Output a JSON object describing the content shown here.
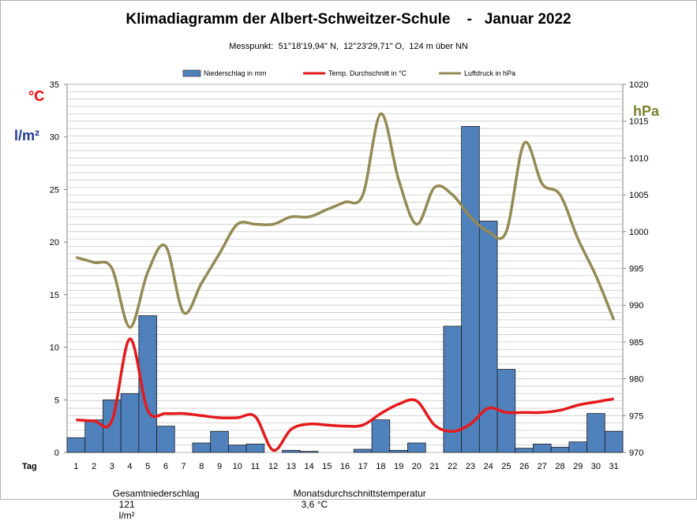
{
  "chart_data": {
    "type": "bar+line",
    "title": "Klimadiagramm der Albert-Schweitzer-Schule    -   Januar 2022",
    "subtitle": "Messpunkt:  51°18'19,94\" N,  12°23'29,71\" O,  124 m über NN",
    "x_axis_label": "Tag",
    "left_axis_units": [
      "°C",
      "l/m²"
    ],
    "right_axis_unit": "hPa",
    "left_axis": {
      "min": 0,
      "max": 35,
      "ticks": [
        "0",
        "5",
        "10",
        "15",
        "20",
        "25",
        "30",
        "35"
      ]
    },
    "right_axis": {
      "min": 970,
      "max": 1020,
      "ticks": [
        "970",
        "975",
        "980",
        "985",
        "990",
        "995",
        "1000",
        "1005",
        "1010",
        "1015",
        "1020"
      ]
    },
    "grid": true,
    "legend_position": "top",
    "categories": [
      "1",
      "2",
      "3",
      "4",
      "5",
      "6",
      "7",
      "8",
      "9",
      "10",
      "11",
      "12",
      "13",
      "14",
      "15",
      "16",
      "17",
      "18",
      "19",
      "20",
      "21",
      "22",
      "23",
      "24",
      "25",
      "26",
      "27",
      "28",
      "29",
      "30",
      "31"
    ],
    "series": [
      {
        "name": "Niederschlag in mm",
        "type": "bar",
        "axis": "left",
        "color": "#4f81bd",
        "values": [
          1.4,
          3.1,
          5.0,
          5.6,
          13.0,
          2.5,
          0,
          0.9,
          2.0,
          0.7,
          0.8,
          0,
          0.2,
          0.1,
          0,
          0,
          0.3,
          3.1,
          0.2,
          0.9,
          0,
          12.0,
          31.0,
          22.0,
          7.9,
          0.4,
          0.8,
          0.5,
          1.0,
          3.7,
          2.0
        ]
      },
      {
        "name": "Temp. Durchschnitt in °C",
        "type": "line",
        "axis": "left",
        "color": "#e41a1c",
        "values": [
          3.1,
          3.0,
          3.0,
          10.8,
          4.0,
          3.7,
          3.7,
          3.5,
          3.3,
          3.3,
          3.4,
          0.2,
          2.2,
          2.7,
          2.6,
          2.5,
          2.6,
          3.7,
          4.6,
          4.9,
          2.6,
          2.0,
          2.7,
          4.2,
          3.8,
          3.8,
          3.8,
          4.0,
          4.5,
          4.8,
          5.1
        ]
      },
      {
        "name": "Luftdruck in hPa",
        "type": "line",
        "axis": "right",
        "color": "#948a54",
        "values": [
          996.5,
          995.8,
          995.0,
          987.0,
          994.5,
          998.0,
          989.0,
          993.0,
          997.0,
          1001.0,
          1001.0,
          1001.0,
          1002.0,
          1002.0,
          1003.0,
          1004.0,
          1005.0,
          1016.0,
          1007.0,
          1001.0,
          1006.0,
          1005.0,
          1002.0,
          1000.0,
          1000.0,
          1012.0,
          1006.5,
          1005.0,
          999.0,
          994.0,
          988.0
        ]
      }
    ]
  },
  "footer": {
    "precip_label": "Gesamtniederschlag",
    "precip_value": "121",
    "precip_unit": "l/m²",
    "temp_label": "Monatsdurchschnittstemperatur",
    "temp_value": "3,6 °C"
  },
  "colors": {
    "left_unit_temp": "#ff0000",
    "left_unit_precip": "#1f3a93",
    "right_unit": "#7f7f2f",
    "bars": "#4f81bd",
    "temp": "#e41a1c",
    "pressure": "#948a54"
  }
}
